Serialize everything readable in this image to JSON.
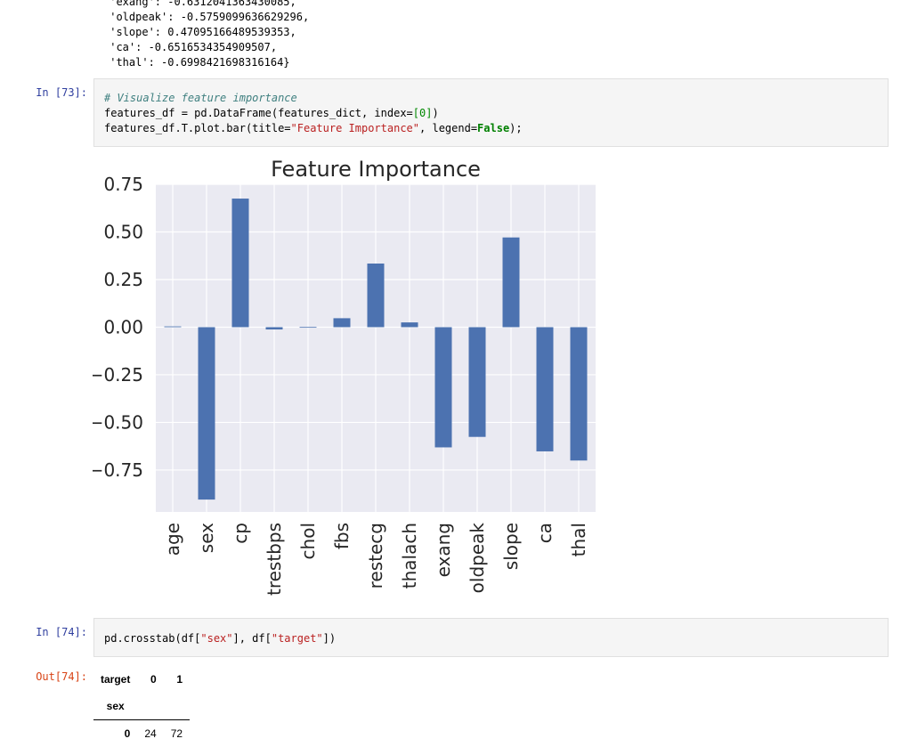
{
  "prev_output": {
    "lines": [
      " 'exang': -0.6312041363430085,",
      " 'oldpeak': -0.5759099636629296,",
      " 'slope': 0.47095166489539353,",
      " 'ca': -0.6516534354909507,",
      " 'thal': -0.6998421698316164}"
    ]
  },
  "cell73": {
    "prompt": "In [73]:",
    "comment": "# Visualize feature importance",
    "line2_a": "features_df = pd.DataFrame(features_dict, index=",
    "line2_num": "[0]",
    "line2_b": ")",
    "line3_a": "features_df.T.plot.bar(title=",
    "line3_str": "\"Feature Importance\"",
    "line3_b": ", legend=",
    "line3_kw": "False",
    "line3_c": ");"
  },
  "cell74": {
    "prompt": "In [74]:",
    "code_a": "pd.crosstab(df[",
    "code_s1": "\"sex\"",
    "code_b": "], df[",
    "code_s2": "\"target\"",
    "code_c": "])"
  },
  "out74": {
    "prompt": "Out[74]:",
    "columns_name": "target",
    "columns": [
      "0",
      "1"
    ],
    "index_name": "sex",
    "rows": [
      {
        "index": "0",
        "values": [
          "24",
          "72"
        ]
      }
    ]
  },
  "chart_data": {
    "type": "bar",
    "title": "Feature Importance",
    "categories": [
      "age",
      "sex",
      "cp",
      "trestbps",
      "chol",
      "fbs",
      "restecg",
      "thalach",
      "exang",
      "oldpeak",
      "slope",
      "ca",
      "thal"
    ],
    "values": [
      0.004,
      -0.905,
      0.675,
      -0.012,
      0.001,
      0.047,
      0.334,
      0.025,
      -0.631,
      -0.576,
      0.471,
      -0.652,
      -0.7
    ],
    "yticks": [
      0.75,
      0.5,
      0.25,
      0.0,
      -0.25,
      -0.5,
      -0.75
    ],
    "ytick_labels": [
      "0.75",
      "0.50",
      "0.25",
      "0.00",
      "−0.25",
      "−0.50",
      "−0.75"
    ],
    "ylim": [
      -0.97,
      0.75
    ],
    "legend": false,
    "grid": true,
    "colors": {
      "bar": "#4c72b0",
      "plot_bg": "#eaeaf2",
      "grid": "#ffffff"
    }
  }
}
